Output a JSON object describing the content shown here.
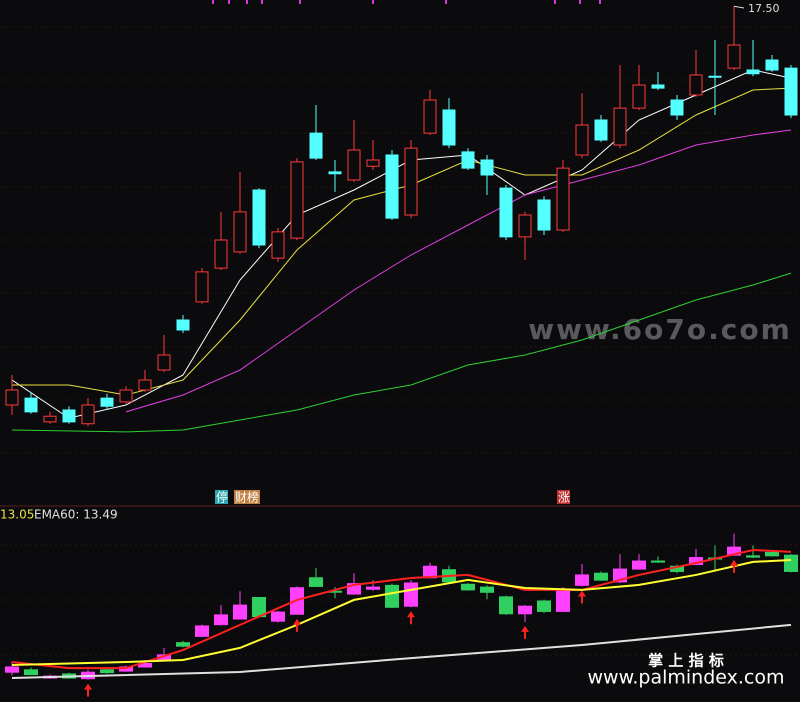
{
  "chart_data": [
    {
      "type": "candlestick",
      "annotation": "17.50",
      "ylim": [
        9.92,
        17.6
      ],
      "up_color": "#ff3b3b",
      "down_color": "#54ffff",
      "open": [
        11.12,
        11.23,
        10.85,
        11.04,
        10.82,
        11.23,
        11.17,
        11.36,
        11.68,
        12.48,
        12.77,
        13.31,
        13.57,
        14.56,
        13.47,
        13.79,
        15.47,
        14.85,
        14.72,
        14.94,
        15.12,
        14.16,
        15.47,
        15.84,
        15.17,
        15.04,
        14.59,
        13.81,
        14.4,
        13.92,
        15.12,
        15.68,
        15.28,
        15.87,
        16.24,
        16.0,
        16.08,
        16.38,
        16.51,
        16.48,
        16.64,
        16.51
      ],
      "high": [
        11.6,
        11.33,
        11.01,
        11.1,
        11.23,
        11.3,
        11.42,
        11.68,
        12.24,
        12.56,
        13.31,
        14.21,
        14.85,
        14.59,
        13.95,
        15.07,
        15.92,
        15.04,
        15.68,
        15.36,
        15.2,
        15.36,
        16.16,
        16.03,
        15.23,
        15.12,
        14.64,
        14.21,
        14.46,
        15.04,
        16.11,
        15.76,
        16.56,
        16.56,
        16.45,
        16.08,
        16.8,
        16.96,
        17.5,
        16.96,
        16.72,
        16.56
      ],
      "low": [
        10.96,
        10.98,
        10.82,
        10.82,
        10.78,
        11.04,
        11.14,
        11.33,
        11.65,
        12.27,
        12.74,
        13.28,
        13.54,
        13.63,
        13.41,
        13.76,
        15.04,
        14.53,
        14.69,
        14.88,
        14.08,
        14.11,
        15.44,
        15.23,
        14.88,
        14.48,
        13.76,
        13.44,
        13.84,
        13.89,
        15.07,
        15.33,
        15.23,
        15.84,
        16.16,
        15.68,
        16.05,
        15.76,
        16.48,
        16.38,
        16.45,
        15.71
      ],
      "close": [
        11.36,
        11.01,
        10.94,
        10.85,
        11.12,
        11.1,
        11.36,
        11.52,
        11.92,
        12.32,
        13.25,
        13.76,
        14.21,
        13.68,
        13.89,
        15.01,
        15.07,
        14.82,
        15.2,
        15.04,
        14.11,
        15.23,
        16.0,
        15.28,
        14.91,
        14.8,
        13.81,
        14.16,
        13.92,
        14.91,
        15.6,
        15.36,
        15.87,
        16.24,
        16.19,
        15.76,
        16.4,
        16.37,
        16.88,
        16.42,
        16.48,
        15.76
      ],
      "lines": [
        {
          "color": "#ffffff",
          "x": [
            0,
            3,
            6,
            9,
            12,
            15,
            18,
            21,
            24,
            27,
            30,
            33,
            36,
            39,
            41
          ],
          "values": [
            11.52,
            10.91,
            11.12,
            11.6,
            13.12,
            14.16,
            14.56,
            15.04,
            15.12,
            14.48,
            14.88,
            15.68,
            16.08,
            16.48,
            16.35
          ]
        },
        {
          "color": "#e8e040",
          "x": [
            0,
            3,
            6,
            9,
            12,
            15,
            18,
            21,
            24,
            27,
            30,
            33,
            36,
            39,
            41
          ],
          "values": [
            11.44,
            11.44,
            11.28,
            11.52,
            12.48,
            13.6,
            14.4,
            14.64,
            15.04,
            14.8,
            14.8,
            15.2,
            15.76,
            16.16,
            16.19
          ]
        },
        {
          "color": "#e040e0",
          "x": [
            6,
            9,
            12,
            15,
            18,
            21,
            24,
            27,
            30,
            33,
            36,
            39,
            41
          ],
          "values": [
            11.01,
            11.28,
            11.68,
            12.32,
            12.96,
            13.52,
            14.0,
            14.48,
            14.72,
            14.96,
            15.28,
            15.44,
            15.52
          ]
        },
        {
          "color": "#30d030",
          "x": [
            0,
            6,
            9,
            12,
            15,
            18,
            21,
            24,
            27,
            30,
            33,
            36,
            39,
            41
          ],
          "values": [
            10.72,
            10.69,
            10.72,
            10.88,
            11.04,
            11.28,
            11.44,
            11.76,
            11.92,
            12.16,
            12.48,
            12.8,
            13.04,
            13.23
          ]
        }
      ],
      "tags": [
        {
          "text": "停",
          "candle": 11,
          "color": "#2aa8b0"
        },
        {
          "text": "财榜",
          "candle": 12,
          "color": "#c08040"
        },
        {
          "text": "涨",
          "candle": 29,
          "color": "#c03030"
        }
      ]
    },
    {
      "type": "candlestick",
      "legend": [
        "13.05",
        "EMA60: 13.49"
      ],
      "ylim": [
        10.3,
        17.9
      ],
      "up_color": "#ff40ff",
      "down_color": "#30d060",
      "signals": [
        4,
        15,
        21,
        27,
        30,
        38
      ],
      "lines": [
        {
          "color": "#ff2020",
          "x": [
            0,
            3,
            6,
            9,
            12,
            15,
            18,
            21,
            24,
            27,
            30,
            33,
            36,
            39,
            41
          ],
          "values": [
            11.59,
            11.31,
            11.31,
            12.14,
            13.3,
            14.45,
            15.14,
            15.46,
            15.6,
            14.91,
            14.91,
            15.6,
            16.15,
            16.75,
            16.66
          ]
        },
        {
          "color": "#ffff30",
          "x": [
            0,
            6,
            9,
            12,
            15,
            18,
            21,
            24,
            27,
            30,
            33,
            36,
            39,
            41
          ],
          "values": [
            11.45,
            11.59,
            11.68,
            12.24,
            13.3,
            14.45,
            14.91,
            15.37,
            15.0,
            14.91,
            15.14,
            15.6,
            16.2,
            16.29
          ]
        },
        {
          "color": "#e0e0e0",
          "x": [
            0,
            12,
            21,
            30,
            41
          ],
          "values": [
            10.85,
            11.13,
            11.77,
            12.37,
            13.3
          ]
        }
      ]
    }
  ],
  "watermarks": {
    "top": "www.6o7o.com",
    "brand": "掌 上 指 标",
    "site": "www.palmindex.com"
  }
}
